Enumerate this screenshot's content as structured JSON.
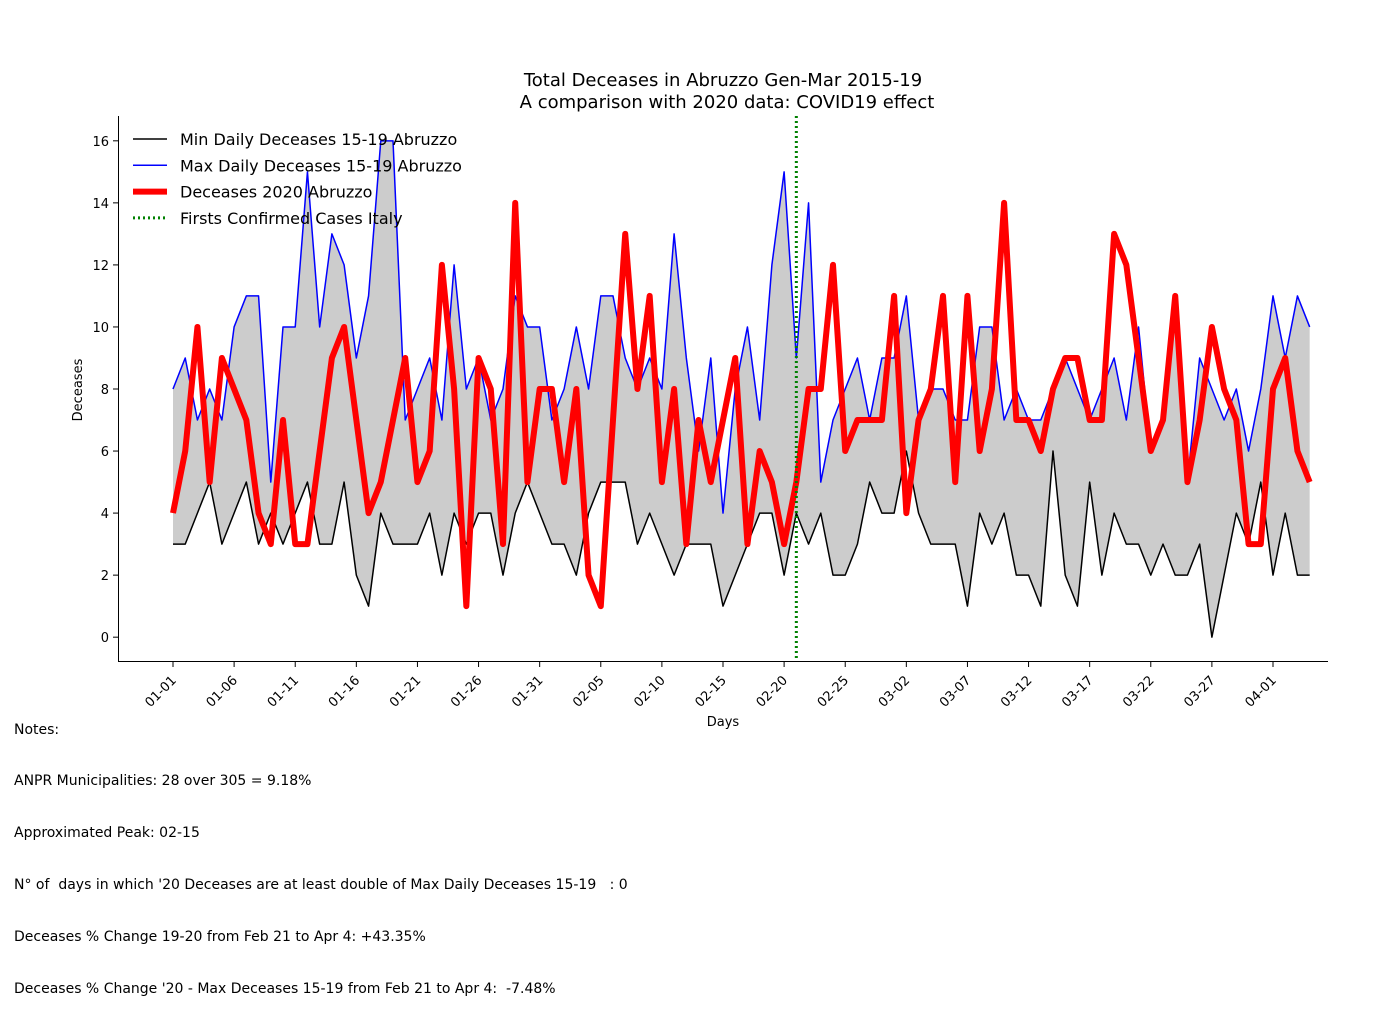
{
  "chart_data": {
    "type": "line",
    "title": "Total Deceases in Abruzzo Gen-Mar 2015-19",
    "subtitle": "A comparison with 2020 data: COVID19 effect",
    "xlabel": "Days",
    "ylabel": "Deceases",
    "ylim": [
      -0.8,
      16.8
    ],
    "yticks": [
      0,
      2,
      4,
      6,
      8,
      10,
      12,
      14,
      16
    ],
    "xticks": [
      "01-01",
      "01-06",
      "01-11",
      "01-16",
      "01-21",
      "01-26",
      "01-31",
      "02-05",
      "02-10",
      "02-15",
      "02-20",
      "02-25",
      "03-02",
      "03-07",
      "03-12",
      "03-17",
      "03-22",
      "03-27",
      "04-01"
    ],
    "tick_step_days": 5,
    "xlim_days": [
      -4.5,
      94.5
    ],
    "grid": false,
    "legend_position": "top-left",
    "fill_between": {
      "lower": "Min Daily Deceases 15-19 Abruzzo",
      "upper": "Max Daily Deceases 15-19 Abruzzo",
      "color": "#cccccc"
    },
    "series": [
      {
        "name": "Min Daily Deceases 15-19 Abruzzo",
        "color": "#000000",
        "width": 1.5,
        "values": [
          3,
          3,
          4,
          5,
          3,
          4,
          5,
          3,
          4,
          3,
          4,
          5,
          3,
          3,
          5,
          2,
          1,
          4,
          3,
          3,
          3,
          4,
          2,
          4,
          3,
          4,
          4,
          2,
          4,
          5,
          4,
          3,
          3,
          2,
          4,
          5,
          5,
          5,
          3,
          4,
          3,
          2,
          3,
          3,
          3,
          1,
          2,
          3,
          4,
          4,
          2,
          4,
          3,
          4,
          2,
          2,
          3,
          5,
          4,
          4,
          6,
          4,
          3,
          3,
          3,
          1,
          4,
          3,
          4,
          2,
          2,
          1,
          6,
          2,
          1,
          5,
          2,
          4,
          3,
          3,
          2,
          3,
          2,
          2,
          3,
          0,
          2,
          4,
          3,
          5,
          2,
          4,
          2,
          2
        ]
      },
      {
        "name": "Max Daily Deceases 15-19 Abruzzo",
        "color": "#0000ff",
        "width": 1.5,
        "values": [
          8,
          9,
          7,
          8,
          7,
          10,
          11,
          11,
          5,
          10,
          10,
          15,
          10,
          13,
          12,
          9,
          11,
          16,
          16,
          7,
          8,
          9,
          7,
          12,
          8,
          9,
          7,
          8,
          11,
          10,
          10,
          7,
          8,
          10,
          8,
          11,
          11,
          9,
          8,
          9,
          8,
          13,
          9,
          6,
          9,
          4,
          8,
          10,
          7,
          12,
          15,
          9,
          14,
          5,
          7,
          8,
          9,
          7,
          9,
          9,
          11,
          7,
          8,
          8,
          7,
          7,
          10,
          10,
          7,
          8,
          7,
          7,
          8,
          9,
          8,
          7,
          8,
          9,
          7,
          10,
          6,
          7,
          11,
          5,
          9,
          8,
          7,
          8,
          6,
          8,
          11,
          9,
          11,
          10
        ]
      },
      {
        "name": "Deceases 2020 Abruzzo",
        "color": "#ff0000",
        "width": 6,
        "values": [
          4,
          6,
          10,
          5,
          9,
          8,
          7,
          4,
          3,
          7,
          3,
          3,
          6,
          9,
          10,
          7,
          4,
          5,
          7,
          9,
          5,
          6,
          12,
          8,
          1,
          9,
          8,
          3,
          14,
          5,
          8,
          8,
          5,
          8,
          2,
          1,
          7,
          13,
          8,
          11,
          5,
          8,
          3,
          7,
          5,
          7,
          9,
          3,
          6,
          5,
          3,
          5,
          8,
          8,
          12,
          6,
          7,
          7,
          7,
          11,
          4,
          7,
          8,
          11,
          5,
          11,
          6,
          8,
          14,
          7,
          7,
          6,
          8,
          9,
          9,
          7,
          7,
          13,
          12,
          9,
          6,
          7,
          11,
          5,
          7,
          10,
          8,
          7,
          3,
          3,
          8,
          9,
          6,
          5
        ]
      },
      {
        "name": "Firsts Confirmed Cases Italy",
        "type": "vline",
        "color": "#008000",
        "style": "dotted",
        "x_date": "02-21"
      }
    ]
  },
  "notes": {
    "heading": "Notes:",
    "lines": [
      "ANPR Municipalities: 28 over 305 = 9.18%",
      "Approximated Peak: 02-15",
      "N° of  days in which '20 Deceases are at least double of Max Daily Deceases 15-19   : 0",
      "Deceases % Change 19-20 from Feb 21 to Apr 4: +43.35%",
      "Deceases % Change '20 - Max Deceases 15-19 from Feb 21 to Apr 4:  -7.48%"
    ]
  }
}
